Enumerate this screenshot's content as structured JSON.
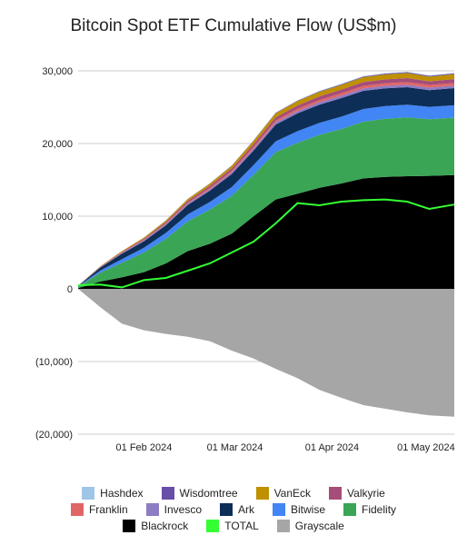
{
  "chart_data": {
    "type": "area",
    "title": "Bitcoin Spot ETF Cumulative Flow (US$m)",
    "xlabel": "",
    "ylabel": "",
    "ylim": [
      -20000,
      30000
    ],
    "y_ticks": [
      {
        "value": 30000,
        "label": "30,000"
      },
      {
        "value": 20000,
        "label": "20,000"
      },
      {
        "value": 10000,
        "label": "10,000"
      },
      {
        "value": 0,
        "label": "0"
      },
      {
        "value": -10000,
        "label": "(10,000)"
      },
      {
        "value": -20000,
        "label": "(20,000)"
      }
    ],
    "x_tick_labels": [
      "01 Feb 2024",
      "01 Mar 2024",
      "01 Apr 2024",
      "01 May 2024"
    ],
    "x_tick_dates": [
      "2024-02-01",
      "2024-03-01",
      "2024-04-01",
      "2024-05-01"
    ],
    "x_range": [
      "2024-01-11",
      "2024-05-10"
    ],
    "grid": true,
    "legend_position": "bottom",
    "dates": [
      "2024-01-11",
      "2024-01-18",
      "2024-01-25",
      "2024-02-01",
      "2024-02-08",
      "2024-02-15",
      "2024-02-22",
      "2024-02-29",
      "2024-03-07",
      "2024-03-14",
      "2024-03-21",
      "2024-03-28",
      "2024-04-04",
      "2024-04-11",
      "2024-04-18",
      "2024-04-25",
      "2024-05-02",
      "2024-05-10"
    ],
    "series": [
      {
        "name": "Blackrock",
        "color": "#000000",
        "values": [
          100,
          1000,
          1600,
          2300,
          3500,
          5200,
          6200,
          7600,
          10000,
          12300,
          13100,
          13900,
          14500,
          15200,
          15400,
          15500,
          15550,
          15650
        ]
      },
      {
        "name": "Fidelity",
        "color": "#3aa655",
        "values": [
          200,
          1200,
          2000,
          2700,
          3400,
          4100,
          4700,
          5200,
          5700,
          6500,
          7000,
          7300,
          7500,
          7800,
          8000,
          8100,
          7800,
          7900
        ]
      },
      {
        "name": "Bitwise",
        "color": "#4285f4",
        "values": [
          50,
          300,
          500,
          650,
          800,
          950,
          1050,
          1200,
          1350,
          1500,
          1600,
          1650,
          1700,
          1750,
          1750,
          1750,
          1700,
          1720
        ]
      },
      {
        "name": "Ark",
        "color": "#0d2e57",
        "values": [
          50,
          400,
          750,
          900,
          1050,
          1300,
          1550,
          1800,
          2000,
          2300,
          2450,
          2500,
          2550,
          2500,
          2450,
          2400,
          2300,
          2350
        ]
      },
      {
        "name": "Invesco",
        "color": "#8e7cc3",
        "values": [
          10,
          50,
          90,
          120,
          150,
          180,
          210,
          240,
          270,
          300,
          320,
          330,
          340,
          350,
          350,
          350,
          340,
          350
        ]
      },
      {
        "name": "Franklin",
        "color": "#e06666",
        "values": [
          10,
          40,
          60,
          80,
          100,
          130,
          160,
          190,
          220,
          260,
          290,
          310,
          330,
          340,
          350,
          360,
          350,
          360
        ]
      },
      {
        "name": "Valkyrie",
        "color": "#a64d79",
        "values": [
          10,
          50,
          100,
          150,
          200,
          250,
          300,
          350,
          400,
          450,
          480,
          500,
          510,
          520,
          530,
          540,
          520,
          530
        ]
      },
      {
        "name": "VanEck",
        "color": "#bf9000",
        "values": [
          10,
          50,
          100,
          150,
          200,
          250,
          300,
          350,
          450,
          550,
          600,
          620,
          640,
          660,
          680,
          700,
          650,
          680
        ]
      },
      {
        "name": "Wisdomtree",
        "color": "#674ea7",
        "values": [
          0,
          5,
          10,
          15,
          20,
          25,
          30,
          40,
          50,
          60,
          70,
          80,
          90,
          100,
          110,
          110,
          110,
          110
        ]
      },
      {
        "name": "Hashdex",
        "color": "#9fc5e8",
        "values": [
          0,
          5,
          10,
          15,
          20,
          25,
          30,
          35,
          40,
          45,
          50,
          55,
          60,
          65,
          70,
          70,
          70,
          70
        ]
      },
      {
        "name": "Grayscale",
        "color": "#a6a6a6",
        "values": [
          0,
          -2500,
          -4800,
          -5700,
          -6200,
          -6600,
          -7200,
          -8500,
          -9600,
          -11000,
          -12300,
          -13900,
          -15000,
          -16000,
          -16500,
          -17000,
          -17400,
          -17600
        ]
      },
      {
        "name": "TOTAL",
        "color": "#33ff33",
        "values": [
          500,
          600,
          200,
          1200,
          1500,
          2500,
          3500,
          5000,
          6500,
          9000,
          11800,
          11500,
          12000,
          12200,
          12300,
          12000,
          11000,
          11600
        ]
      }
    ],
    "legend": [
      [
        {
          "name": "Hashdex",
          "color": "#9fc5e8"
        },
        {
          "name": "Wisdomtree",
          "color": "#674ea7"
        },
        {
          "name": "VanEck",
          "color": "#bf9000"
        },
        {
          "name": "Valkyrie",
          "color": "#a64d79"
        }
      ],
      [
        {
          "name": "Franklin",
          "color": "#e06666"
        },
        {
          "name": "Invesco",
          "color": "#8e7cc3"
        },
        {
          "name": "Ark",
          "color": "#0d2e57"
        },
        {
          "name": "Bitwise",
          "color": "#4285f4"
        },
        {
          "name": "Fidelity",
          "color": "#3aa655"
        }
      ],
      [
        {
          "name": "Blackrock",
          "color": "#000000"
        },
        {
          "name": "TOTAL",
          "color": "#33ff33"
        },
        {
          "name": "Grayscale",
          "color": "#a6a6a6"
        }
      ]
    ]
  }
}
